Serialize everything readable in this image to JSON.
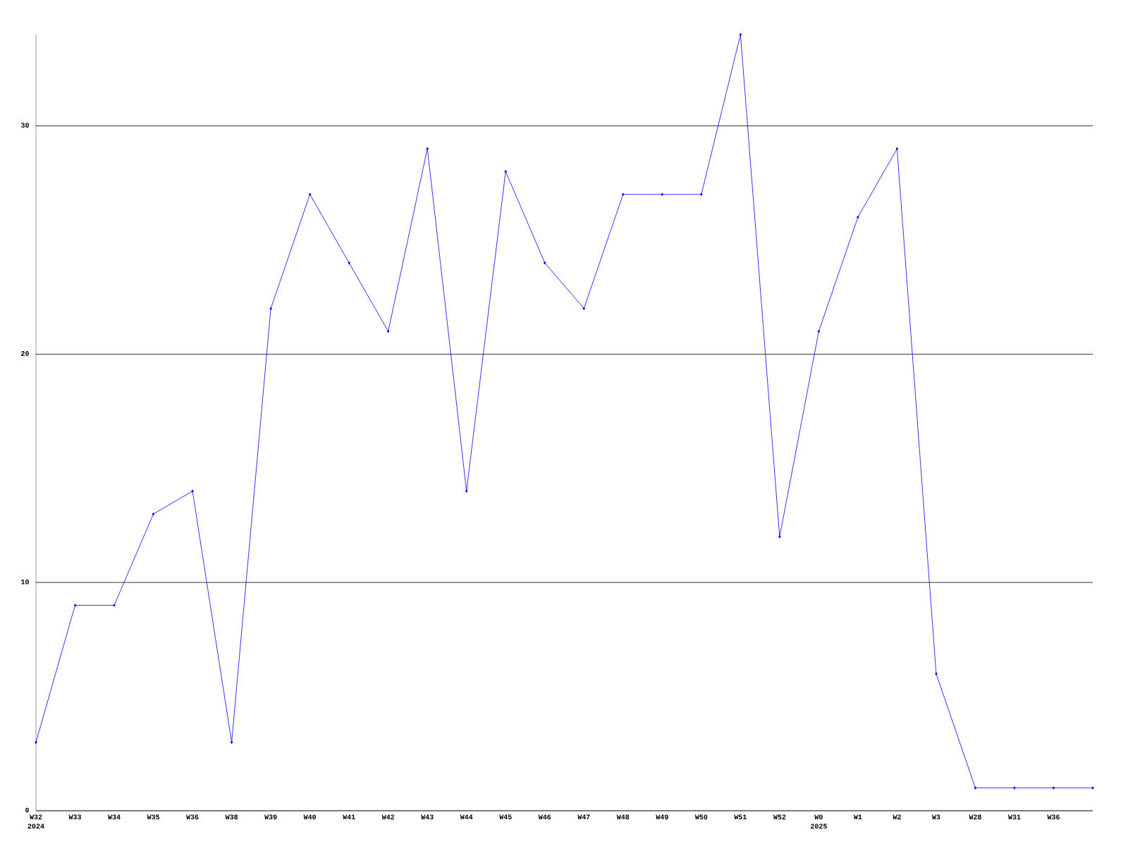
{
  "chart_data": {
    "type": "line",
    "categories": [
      "W32",
      "W33",
      "W34",
      "W35",
      "W36",
      "W38",
      "W39",
      "W40",
      "W41",
      "W42",
      "W43",
      "W44",
      "W45",
      "W46",
      "W47",
      "W48",
      "W49",
      "W50",
      "W51",
      "W52",
      "W0",
      "W1",
      "W2",
      "W3",
      "W28",
      "W31",
      "W36",
      null
    ],
    "series": [
      {
        "color": "#0000ff",
        "values": [
          3,
          9,
          9,
          13,
          14,
          3,
          22,
          27,
          24,
          21,
          29,
          14,
          28,
          24,
          22,
          27,
          27,
          27,
          34,
          12,
          21,
          26,
          29,
          6,
          1,
          1,
          1,
          1
        ]
      }
    ],
    "ylim": [
      0,
      34
    ],
    "yticks": [
      0,
      10,
      20,
      30
    ],
    "grid": "y",
    "marker": "diamond",
    "line_style": "solid",
    "annotations": [
      "2024",
      "2025"
    ]
  }
}
